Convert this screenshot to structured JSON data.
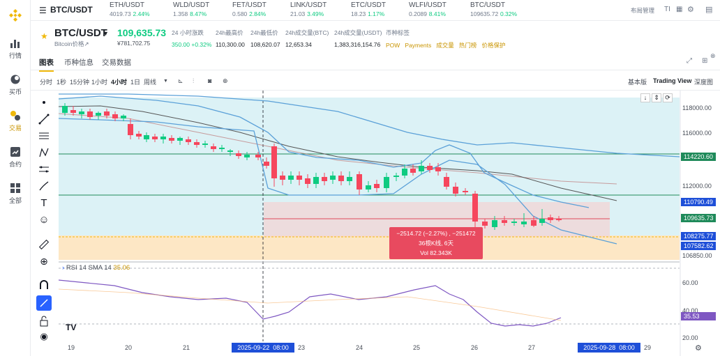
{
  "topbar": {
    "pair": "BTC/USDT",
    "tickers": [
      {
        "sym": "ETH/USDT",
        "price": "4019.73",
        "change": "2.44%"
      },
      {
        "sym": "WLD/USDT",
        "price": "1.358",
        "change": "8.47%"
      },
      {
        "sym": "FET/USDT",
        "price": "0.580",
        "change": "2.84%"
      },
      {
        "sym": "LINK/USDT",
        "price": "21.03",
        "change": "3.49%"
      },
      {
        "sym": "ETC/USDT",
        "price": "18.23",
        "change": "1.17%"
      },
      {
        "sym": "WLFI/USDT",
        "price": "0.2089",
        "change": "8.41%"
      },
      {
        "sym": "BTC/USDT",
        "price": "109635.72",
        "change": "0.32%"
      }
    ],
    "layout_label": "布局管理"
  },
  "sidebar": [
    {
      "label": "行情",
      "icon": "market-chart-icon"
    },
    {
      "label": "买币",
      "icon": "buy-crypto-icon"
    },
    {
      "label": "交易",
      "icon": "trade-icon"
    },
    {
      "label": "合约",
      "icon": "futures-icon"
    },
    {
      "label": "全部",
      "icon": "all-apps-icon"
    }
  ],
  "info": {
    "symbol": "BTC/USDT",
    "subtitle": "Bitcoin价格↗",
    "last_price": "109,635.73",
    "cny_price": "¥781,702.75",
    "stats": [
      {
        "label": "24 小时涨跌",
        "value": "350.00 +0.32%"
      },
      {
        "label": "24h最高价",
        "value": "110,300.00"
      },
      {
        "label": "24h最低价",
        "value": "108,620.07"
      },
      {
        "label": "24h成交量(BTC)",
        "value": "12,653.34"
      },
      {
        "label": "24h成交量(USDT)",
        "value": "1,383,316,154.76"
      }
    ],
    "tags_label": "币种标签",
    "tags": [
      "POW",
      "Payments",
      "成交量",
      "热门榜",
      "价格保护"
    ]
  },
  "tabs": [
    "图表",
    "币种信息",
    "交易数据"
  ],
  "toolbar": {
    "intervals": [
      "分时",
      "1秒",
      "15分钟",
      "1小时",
      "4小时",
      "1日",
      "周线"
    ],
    "active_interval": "4小时",
    "views": [
      "基本版",
      "Trading View",
      "深度图"
    ],
    "active_view": "Trading View"
  },
  "chart": {
    "price_labels": [
      "118000.00",
      "116000.00",
      "112000.00",
      "106850.00"
    ],
    "levels": [
      {
        "value": "114220.60",
        "color": "#1f8a5a"
      },
      {
        "value": "110790.49",
        "color": "#1e4fd8"
      },
      {
        "value": "109635.73",
        "color": "#1f8a5a"
      },
      {
        "value": "108275.77",
        "color": "#1e4fd8"
      },
      {
        "value": "107582.62",
        "color": "#1e4fd8"
      }
    ],
    "rsi_title": "RSI 14 SMA 14",
    "rsi_value": "35.06",
    "rsi_axis": [
      "60.00",
      "40.00",
      "20.00"
    ],
    "rsi_level": "35.53",
    "dates": [
      "19",
      "20",
      "21",
      "23",
      "24",
      "25",
      "26",
      "27",
      "29"
    ],
    "crosshair_date": "2025-09-22  08:00",
    "end_date": "2025-09-28  08:00",
    "measure_line1": "−2514.72 (−2.27%) , −251472",
    "measure_line2": "36根K线, 6天",
    "measure_line3": "Vol 82.343K",
    "watermark": "TV"
  },
  "colors": {
    "up": "#0ecb81",
    "down": "#f6465d",
    "accent": "#f0b90b",
    "brand": "#fcd535"
  }
}
